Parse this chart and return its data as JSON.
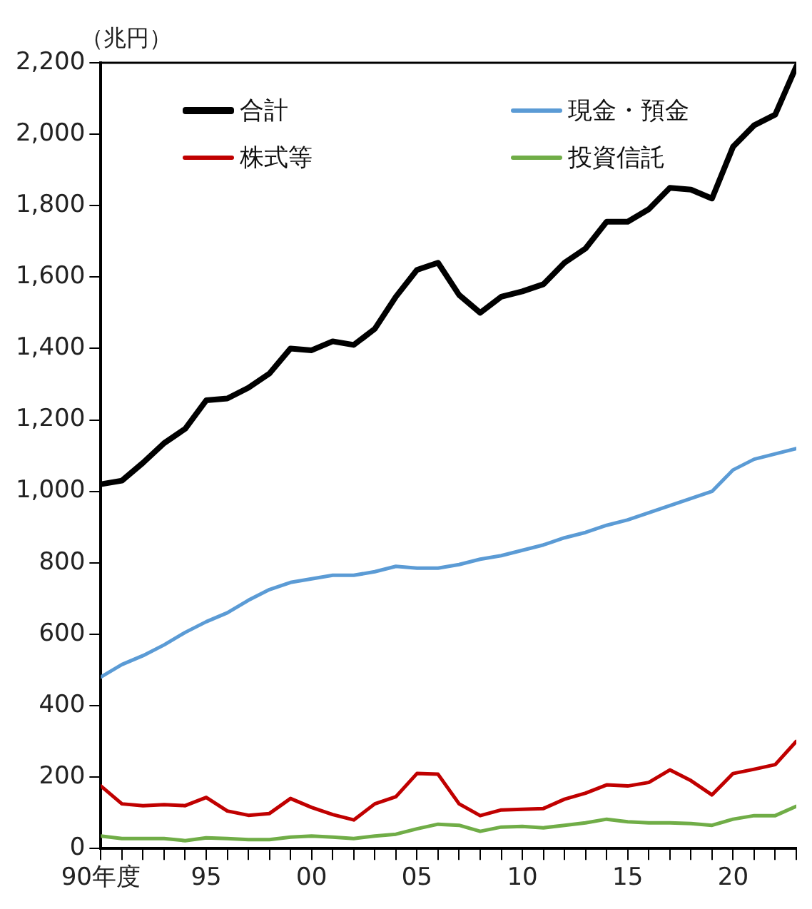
{
  "chart_data": {
    "type": "line",
    "ylabel": "（兆円）",
    "x": [
      "1990",
      "1991",
      "1992",
      "1993",
      "1994",
      "1995",
      "1996",
      "1997",
      "1998",
      "1999",
      "2000",
      "2001",
      "2002",
      "2003",
      "2004",
      "2005",
      "2006",
      "2007",
      "2008",
      "2009",
      "2010",
      "2011",
      "2012",
      "2013",
      "2014",
      "2015",
      "2016",
      "2017",
      "2018",
      "2019",
      "2020",
      "2021",
      "2022",
      "2023"
    ],
    "series": [
      {
        "name": "合計",
        "color": "#000000",
        "values": [
          1020,
          1030,
          1080,
          1135,
          1175,
          1255,
          1260,
          1290,
          1330,
          1400,
          1395,
          1420,
          1410,
          1455,
          1545,
          1620,
          1640,
          1550,
          1500,
          1545,
          1560,
          1580,
          1640,
          1680,
          1755,
          1755,
          1790,
          1850,
          1845,
          1820,
          1965,
          2025,
          2055,
          2190
        ]
      },
      {
        "name": "現金・預金",
        "color": "#5b9bd5",
        "values": [
          480,
          515,
          540,
          570,
          605,
          635,
          660,
          695,
          725,
          745,
          755,
          765,
          765,
          775,
          790,
          785,
          785,
          795,
          810,
          820,
          835,
          850,
          870,
          885,
          905,
          920,
          940,
          960,
          980,
          1000,
          1060,
          1090,
          1105,
          1120
        ]
      },
      {
        "name": "株式等",
        "color": "#c00000",
        "values": [
          175,
          125,
          120,
          123,
          120,
          143,
          105,
          93,
          98,
          140,
          115,
          95,
          80,
          125,
          145,
          210,
          208,
          125,
          92,
          108,
          110,
          112,
          138,
          155,
          178,
          175,
          185,
          220,
          190,
          150,
          210,
          222,
          235,
          300
        ]
      },
      {
        "name": "投資信託",
        "color": "#70ad47",
        "values": [
          35,
          28,
          28,
          28,
          22,
          30,
          28,
          25,
          25,
          32,
          35,
          32,
          28,
          35,
          40,
          55,
          68,
          65,
          48,
          60,
          62,
          58,
          65,
          72,
          82,
          75,
          72,
          72,
          70,
          65,
          82,
          92,
          92,
          118
        ]
      }
    ],
    "xlim": [
      "1990",
      "2023"
    ],
    "xticks": [
      {
        "value": "1990",
        "label": "90年度"
      },
      {
        "value": "1991",
        "label": null
      },
      {
        "value": "1992",
        "label": null
      },
      {
        "value": "1993",
        "label": null
      },
      {
        "value": "1994",
        "label": null
      },
      {
        "value": "1995",
        "label": "95"
      },
      {
        "value": "1996",
        "label": null
      },
      {
        "value": "1997",
        "label": null
      },
      {
        "value": "1998",
        "label": null
      },
      {
        "value": "1999",
        "label": null
      },
      {
        "value": "2000",
        "label": "00"
      },
      {
        "value": "2001",
        "label": null
      },
      {
        "value": "2002",
        "label": null
      },
      {
        "value": "2003",
        "label": null
      },
      {
        "value": "2004",
        "label": null
      },
      {
        "value": "2005",
        "label": "05"
      },
      {
        "value": "2006",
        "label": null
      },
      {
        "value": "2007",
        "label": null
      },
      {
        "value": "2008",
        "label": null
      },
      {
        "value": "2009",
        "label": null
      },
      {
        "value": "2010",
        "label": "10"
      },
      {
        "value": "2011",
        "label": null
      },
      {
        "value": "2012",
        "label": null
      },
      {
        "value": "2013",
        "label": null
      },
      {
        "value": "2014",
        "label": null
      },
      {
        "value": "2015",
        "label": "15"
      },
      {
        "value": "2016",
        "label": null
      },
      {
        "value": "2017",
        "label": null
      },
      {
        "value": "2018",
        "label": null
      },
      {
        "value": "2019",
        "label": null
      },
      {
        "value": "2020",
        "label": "20"
      },
      {
        "value": "2021",
        "label": null
      },
      {
        "value": "2022",
        "label": null
      },
      {
        "value": "2023",
        "label": null
      }
    ],
    "ylim": [
      0,
      2200
    ],
    "yticks": [
      0,
      200,
      400,
      600,
      800,
      {
        "value": 1000,
        "label": "1,000"
      },
      {
        "value": 1200,
        "label": "1,200"
      },
      {
        "value": 1400,
        "label": "1,400"
      },
      {
        "value": 1600,
        "label": "1,600"
      },
      {
        "value": 1800,
        "label": "1,800"
      },
      {
        "value": 2000,
        "label": "2,000"
      },
      {
        "value": 2200,
        "label": "2,200"
      }
    ],
    "grid": false,
    "legend": "top left",
    "marker": "none",
    "line_style": "solid"
  }
}
